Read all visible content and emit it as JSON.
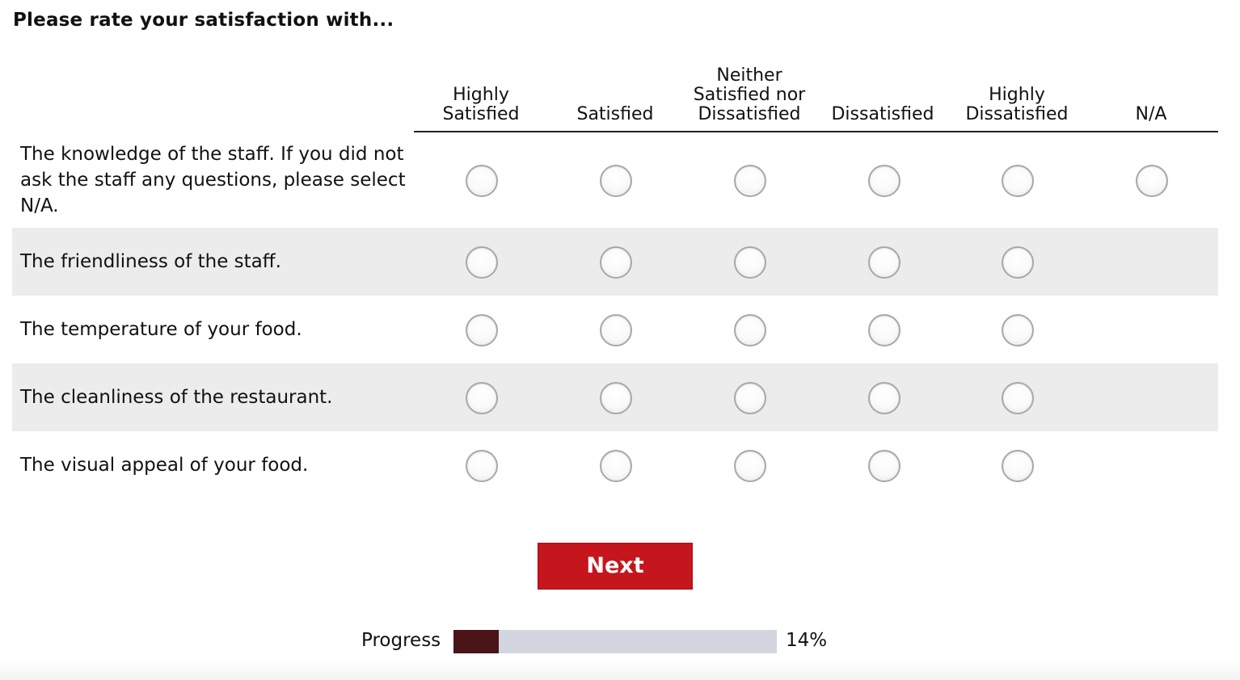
{
  "title": "Please rate your satisfaction with...",
  "columns": [
    "Highly\nSatisfied",
    "Satisfied",
    "Neither\nSatisfied nor\nDissatisfied",
    "Dissatisfied",
    "Highly\nDissatisfied",
    "N/A"
  ],
  "rows": [
    {
      "label": "The knowledge of the staff. If you did not ask the staff any questions, please select N/A.",
      "options": 6
    },
    {
      "label": "The friendliness of the staff.",
      "options": 5
    },
    {
      "label": "The temperature of your food.",
      "options": 5
    },
    {
      "label": "The cleanliness of the restaurant.",
      "options": 5
    },
    {
      "label": "The visual appeal of your food.",
      "options": 5
    }
  ],
  "next_button": {
    "label": "Next"
  },
  "progress": {
    "label": "Progress",
    "percent_text": "14%",
    "value": 0.14
  },
  "colors": {
    "next_bg": "#c4161c",
    "progress_fill": "#4a1418",
    "progress_track": "#d3d6df",
    "row_shade": "#ececec"
  }
}
